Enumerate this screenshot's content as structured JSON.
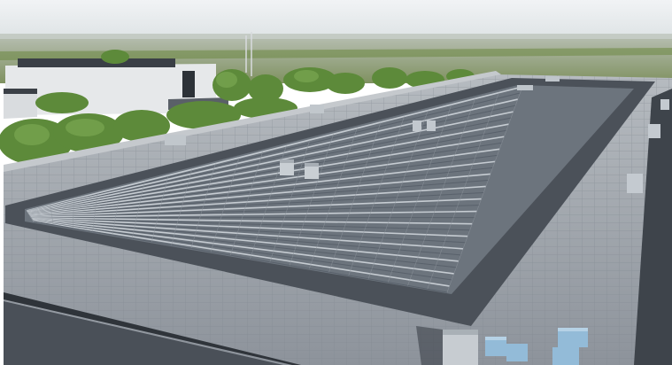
{
  "scene": {
    "sky_color": "#e7ebee",
    "horizon_color": "#cfd6cf",
    "field_color": "#8e9a72",
    "tree_color": "#5f8a3c",
    "roof_color": "#9ea4ab",
    "membrane_color": "#4a5059",
    "panel_color": "#5b6570",
    "panel_highlight": "#c3c9cf",
    "hvac_color": "#8fb4cf"
  }
}
